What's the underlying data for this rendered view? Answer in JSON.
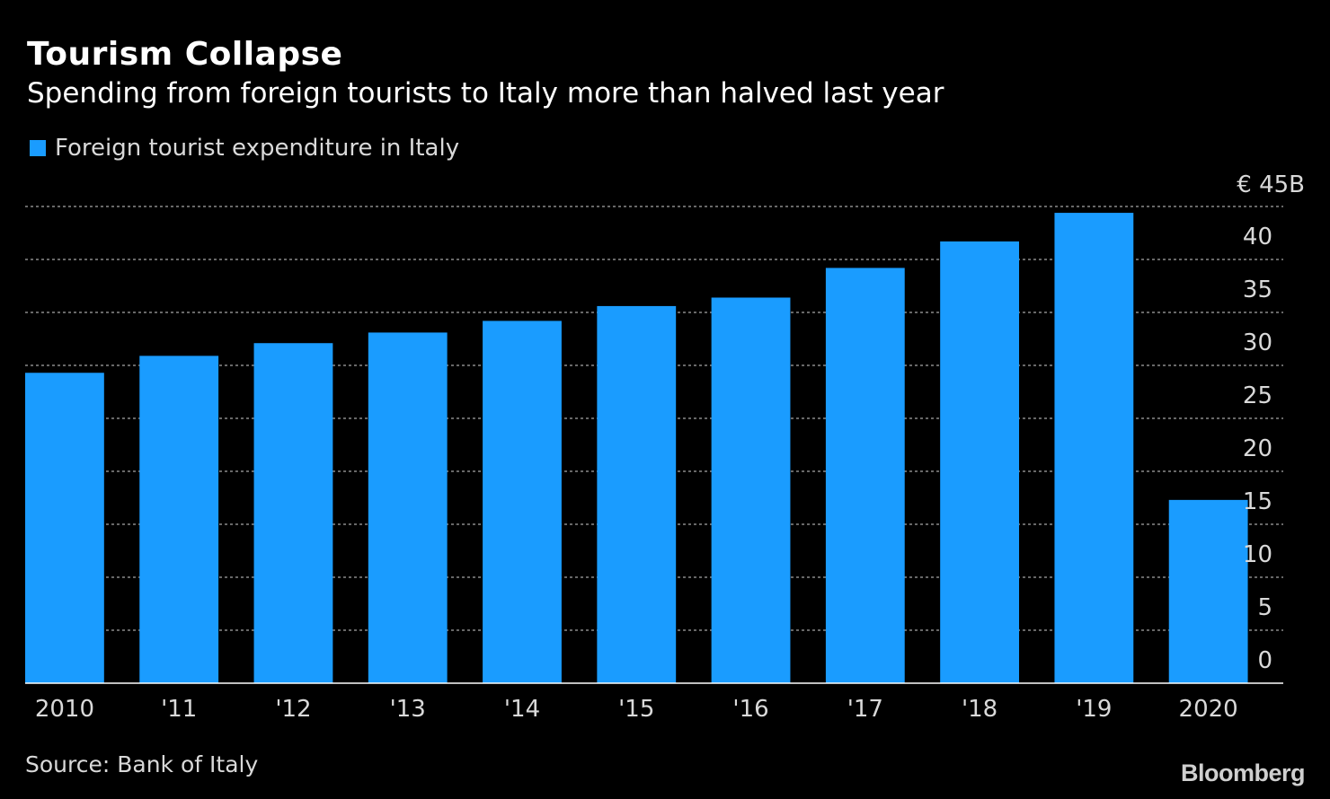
{
  "header": {
    "title": "Tourism Collapse",
    "subtitle": "Spending from foreign tourists to Italy more than halved last year"
  },
  "footer": {
    "source": "Source: Bank of Italy",
    "brand": "Bloomberg"
  },
  "colors": {
    "background": "#000000",
    "bar": "#1a9cff",
    "grid": "#8a8a8a",
    "axis_text": "#d9d9d9"
  },
  "chart_data": {
    "type": "bar",
    "title": "Tourism Collapse",
    "subtitle": "Spending from foreign tourists to Italy more than halved last year",
    "legend": "Foreign tourist expenditure in Italy",
    "legend_placement": "top-left",
    "categories": [
      "2010",
      "'11",
      "'12",
      "'13",
      "'14",
      "'15",
      "'16",
      "'17",
      "'18",
      "'19",
      "2020"
    ],
    "series": [
      {
        "name": "Foreign tourist expenditure in Italy",
        "values": [
          29.3,
          30.9,
          32.1,
          33.1,
          34.2,
          35.6,
          36.4,
          39.2,
          41.7,
          44.4,
          17.3
        ]
      }
    ],
    "ylim": [
      0,
      45
    ],
    "yticks": [
      0,
      5,
      10,
      15,
      20,
      25,
      30,
      35,
      40
    ],
    "ytick_labels": [
      "0",
      "5",
      "10",
      "15",
      "20",
      "25",
      "30",
      "35",
      "40"
    ],
    "ytop_label": "€ 45B",
    "y_axis_side": "right",
    "grid": true,
    "xlabel": "",
    "ylabel": ""
  }
}
